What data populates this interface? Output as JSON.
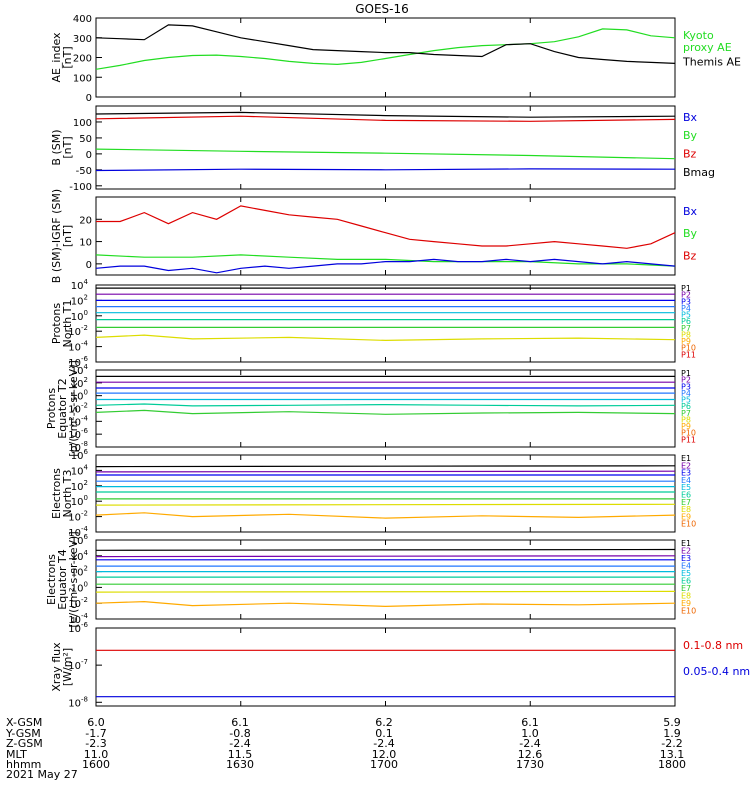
{
  "figure": {
    "title": "GOES-16",
    "date": "2021 May 27"
  },
  "colors": {
    "black": "#000000",
    "green": "#22dd22",
    "blue": "#0000dd",
    "red": "#dd0000",
    "P": [
      "#000000",
      "#7700aa",
      "#0000ee",
      "#2277ff",
      "#00bbdd",
      "#00cc99",
      "#33cc33",
      "#dddd00",
      "#ffaa00",
      "#ee6600",
      "#dd0000"
    ],
    "E": [
      "#000000",
      "#7700aa",
      "#0000ee",
      "#2277ff",
      "#00bbdd",
      "#00cc99",
      "#33cc33",
      "#dddd00",
      "#ffaa00",
      "#ee6600",
      "#dd0000"
    ]
  },
  "ephemeris": {
    "rows": [
      {
        "label": "X-GSM",
        "values": [
          "6.0",
          "6.1",
          "6.2",
          "6.1",
          "5.9"
        ]
      },
      {
        "label": "Y-GSM",
        "values": [
          "-1.7",
          "-0.8",
          "0.1",
          "1.0",
          "1.9"
        ]
      },
      {
        "label": "Z-GSM",
        "values": [
          "-2.3",
          "-2.4",
          "-2.4",
          "-2.4",
          "-2.2"
        ]
      },
      {
        "label": "MLT",
        "values": [
          "11.0",
          "11.5",
          "12.0",
          "12.6",
          "13.1"
        ]
      },
      {
        "label": "hhmm",
        "values": [
          "1600",
          "1630",
          "1700",
          "1730",
          "1800"
        ]
      }
    ]
  },
  "chart_data": [
    {
      "type": "line",
      "ylabel": [
        "AE_index",
        "[nT]"
      ],
      "ylim": [
        0,
        400
      ],
      "yscale": "linear",
      "yticks": [
        0,
        100,
        200,
        300,
        400
      ],
      "xlim": [
        0,
        120
      ],
      "legend": [
        {
          "text": [
            "Kyoto",
            "proxy AE"
          ],
          "color": "#22dd22"
        },
        {
          "text": [
            "Themis AE"
          ],
          "color": "#000000"
        }
      ],
      "series": [
        {
          "name": "Kyoto proxy AE",
          "color": "#22dd22",
          "x": [
            0,
            5,
            10,
            15,
            20,
            25,
            30,
            35,
            40,
            45,
            50,
            55,
            60,
            65,
            70,
            75,
            80,
            85,
            90,
            95,
            100,
            105,
            110,
            115,
            120
          ],
          "y": [
            140,
            160,
            185,
            200,
            210,
            212,
            205,
            195,
            180,
            170,
            165,
            175,
            195,
            215,
            235,
            250,
            260,
            265,
            270,
            280,
            305,
            345,
            340,
            310,
            300
          ]
        },
        {
          "name": "Themis AE",
          "color": "#000000",
          "x": [
            0,
            5,
            10,
            15,
            20,
            25,
            30,
            35,
            40,
            45,
            50,
            55,
            60,
            65,
            70,
            75,
            80,
            85,
            90,
            95,
            100,
            105,
            110,
            115,
            120
          ],
          "y": [
            300,
            295,
            290,
            365,
            360,
            330,
            300,
            280,
            260,
            240,
            235,
            230,
            225,
            225,
            215,
            210,
            205,
            265,
            270,
            230,
            200,
            190,
            180,
            175,
            170
          ]
        }
      ]
    },
    {
      "type": "line",
      "ylabel": [
        "B (SM)",
        "[nT]"
      ],
      "ylim": [
        -110,
        150
      ],
      "yscale": "linear",
      "yticks": [
        -100,
        -50,
        0,
        50,
        100
      ],
      "xlim": [
        0,
        120
      ],
      "legend": [
        {
          "text": [
            "Bx"
          ],
          "color": "#0000dd"
        },
        {
          "text": [
            "By"
          ],
          "color": "#22dd22"
        },
        {
          "text": [
            "Bz"
          ],
          "color": "#dd0000"
        },
        {
          "text": [
            "Bmag"
          ],
          "color": "#000000"
        }
      ],
      "series": [
        {
          "name": "Bmag",
          "color": "#000000",
          "x": [
            0,
            30,
            60,
            90,
            120
          ],
          "y": [
            125,
            130,
            120,
            115,
            118
          ]
        },
        {
          "name": "Bz",
          "color": "#dd0000",
          "x": [
            0,
            30,
            60,
            90,
            120
          ],
          "y": [
            110,
            118,
            105,
            102,
            108
          ]
        },
        {
          "name": "By",
          "color": "#22dd22",
          "x": [
            0,
            30,
            60,
            90,
            120
          ],
          "y": [
            15,
            8,
            2,
            -5,
            -15
          ]
        },
        {
          "name": "Bx",
          "color": "#0000dd",
          "x": [
            0,
            30,
            60,
            90,
            120
          ],
          "y": [
            -52,
            -48,
            -50,
            -47,
            -48
          ]
        }
      ]
    },
    {
      "type": "line",
      "ylabel": [
        "B (SM)-IGRF (SM)",
        "[nT]"
      ],
      "ylim": [
        -5,
        30
      ],
      "yscale": "linear",
      "yticks": [
        0,
        10,
        20
      ],
      "xlim": [
        0,
        120
      ],
      "legend": [
        {
          "text": [
            "Bx"
          ],
          "color": "#0000dd"
        },
        {
          "text": [
            "By"
          ],
          "color": "#22dd22"
        },
        {
          "text": [
            "Bz"
          ],
          "color": "#dd0000"
        }
      ],
      "series": [
        {
          "name": "Bz",
          "color": "#dd0000",
          "x": [
            0,
            5,
            10,
            15,
            20,
            25,
            30,
            35,
            40,
            45,
            50,
            55,
            60,
            65,
            70,
            75,
            80,
            85,
            90,
            95,
            100,
            105,
            110,
            115,
            120
          ],
          "y": [
            19,
            19,
            23,
            18,
            23,
            20,
            26,
            24,
            22,
            21,
            20,
            17,
            14,
            11,
            10,
            9,
            8,
            8,
            9,
            10,
            9,
            8,
            7,
            9,
            14
          ]
        },
        {
          "name": "By",
          "color": "#22dd22",
          "x": [
            0,
            10,
            20,
            30,
            40,
            50,
            60,
            70,
            80,
            90,
            100,
            110,
            120
          ],
          "y": [
            4,
            3,
            3,
            4,
            3,
            2,
            2,
            1,
            1,
            1,
            0,
            0,
            -1
          ]
        },
        {
          "name": "Bx",
          "color": "#0000dd",
          "x": [
            0,
            5,
            10,
            15,
            20,
            25,
            30,
            35,
            40,
            45,
            50,
            55,
            60,
            65,
            70,
            75,
            80,
            85,
            90,
            95,
            100,
            105,
            110,
            115,
            120
          ],
          "y": [
            -2,
            -1,
            -1,
            -3,
            -2,
            -4,
            -2,
            -1,
            -2,
            -1,
            0,
            0,
            1,
            1,
            2,
            1,
            1,
            2,
            1,
            2,
            1,
            0,
            1,
            0,
            -1
          ]
        }
      ]
    },
    {
      "type": "line",
      "ylabel": [
        "Protons",
        "North T1"
      ],
      "yscale": "log",
      "ylim": [
        -6,
        4
      ],
      "ytick_exps": [
        -6,
        -4,
        -2,
        0,
        2,
        4
      ],
      "xlim": [
        0,
        120
      ],
      "legend_names": [
        "P1",
        "P2",
        "P3",
        "P4",
        "P5",
        "P6",
        "P7",
        "P8",
        "P9",
        "P10",
        "P11"
      ],
      "series": [
        {
          "name": "P1",
          "x": [
            0,
            120
          ],
          "y": [
            3.6,
            3.6
          ]
        },
        {
          "name": "P2",
          "x": [
            0,
            120
          ],
          "y": [
            2.8,
            2.8
          ]
        },
        {
          "name": "P3",
          "x": [
            0,
            120
          ],
          "y": [
            2.0,
            2.0
          ]
        },
        {
          "name": "P4",
          "x": [
            0,
            120
          ],
          "y": [
            1.2,
            1.2
          ]
        },
        {
          "name": "P5",
          "x": [
            0,
            120
          ],
          "y": [
            0.4,
            0.4
          ]
        },
        {
          "name": "P6",
          "x": [
            0,
            120
          ],
          "y": [
            -0.5,
            -0.5
          ]
        },
        {
          "name": "P7",
          "x": [
            0,
            120
          ],
          "y": [
            -1.5,
            -1.5
          ]
        },
        {
          "name": "P8",
          "x": [
            0,
            10,
            20,
            40,
            60,
            80,
            100,
            120
          ],
          "y": [
            -2.8,
            -2.5,
            -3.0,
            -2.8,
            -3.2,
            -3.0,
            -2.9,
            -3.1
          ]
        }
      ]
    },
    {
      "type": "line",
      "ylabel": [
        "Protons",
        "Equator T2",
        "[p/(cm²-s-sr-keV)]"
      ],
      "yscale": "log",
      "ylim": [
        -8,
        4
      ],
      "ytick_exps": [
        -8,
        -6,
        -4,
        -2,
        0,
        2,
        4
      ],
      "xlim": [
        0,
        120
      ],
      "legend_names": [
        "P1",
        "P2",
        "P3",
        "P4",
        "P5",
        "P6",
        "P7",
        "P8",
        "P9",
        "P10",
        "P11"
      ],
      "series": [
        {
          "name": "P1",
          "x": [
            0,
            120
          ],
          "y": [
            3.0,
            3.0
          ]
        },
        {
          "name": "P2",
          "x": [
            0,
            120
          ],
          "y": [
            2.1,
            2.1
          ]
        },
        {
          "name": "P3",
          "x": [
            0,
            120
          ],
          "y": [
            1.2,
            1.2
          ]
        },
        {
          "name": "P4",
          "x": [
            0,
            120
          ],
          "y": [
            0.4,
            0.4
          ]
        },
        {
          "name": "P5",
          "x": [
            0,
            120
          ],
          "y": [
            -0.6,
            -0.6
          ]
        },
        {
          "name": "P6",
          "x": [
            0,
            10,
            20,
            40,
            60,
            80,
            100,
            120
          ],
          "y": [
            -1.5,
            -1.3,
            -1.6,
            -1.5,
            -1.4,
            -1.5,
            -1.6,
            -1.5
          ]
        },
        {
          "name": "P7",
          "x": [
            0,
            10,
            20,
            40,
            60,
            80,
            100,
            120
          ],
          "y": [
            -2.6,
            -2.3,
            -2.8,
            -2.5,
            -2.9,
            -2.7,
            -2.6,
            -2.8
          ]
        }
      ]
    },
    {
      "type": "line",
      "ylabel": [
        "Electrons",
        "North T3"
      ],
      "yscale": "log",
      "ylim": [
        -4,
        6
      ],
      "ytick_exps": [
        -4,
        -2,
        0,
        2,
        4,
        6
      ],
      "xlim": [
        0,
        120
      ],
      "legend_names": [
        "E1",
        "E2",
        "E3",
        "E4",
        "E5",
        "E6",
        "E7",
        "E8",
        "E9",
        "E10"
      ],
      "series": [
        {
          "name": "E1",
          "x": [
            0,
            120
          ],
          "y": [
            4.5,
            4.6
          ]
        },
        {
          "name": "E2",
          "x": [
            0,
            120
          ],
          "y": [
            3.8,
            3.9
          ]
        },
        {
          "name": "E3",
          "x": [
            0,
            120
          ],
          "y": [
            3.4,
            3.4
          ]
        },
        {
          "name": "E4",
          "x": [
            0,
            120
          ],
          "y": [
            2.6,
            2.6
          ]
        },
        {
          "name": "E5",
          "x": [
            0,
            120
          ],
          "y": [
            1.9,
            1.9
          ]
        },
        {
          "name": "E6",
          "x": [
            0,
            120
          ],
          "y": [
            1.2,
            1.2
          ]
        },
        {
          "name": "E7",
          "x": [
            0,
            120
          ],
          "y": [
            0.3,
            0.3
          ]
        },
        {
          "name": "E8",
          "x": [
            0,
            120
          ],
          "y": [
            -0.5,
            -0.4
          ]
        },
        {
          "name": "E9",
          "x": [
            0,
            10,
            20,
            40,
            60,
            80,
            100,
            120
          ],
          "y": [
            -1.8,
            -1.5,
            -2.0,
            -1.7,
            -2.2,
            -1.9,
            -2.1,
            -1.8
          ]
        }
      ]
    },
    {
      "type": "line",
      "ylabel": [
        "Electrons",
        "Equator T4",
        "[e/(cm²-s-sr-keV)]"
      ],
      "yscale": "log",
      "ylim": [
        -4,
        6
      ],
      "ytick_exps": [
        -4,
        -2,
        0,
        2,
        4,
        6
      ],
      "xlim": [
        0,
        120
      ],
      "legend_names": [
        "E1",
        "E2",
        "E3",
        "E4",
        "E5",
        "E6",
        "E7",
        "E8",
        "E9",
        "E10"
      ],
      "series": [
        {
          "name": "E1",
          "x": [
            0,
            120
          ],
          "y": [
            4.7,
            4.8
          ]
        },
        {
          "name": "E2",
          "x": [
            0,
            120
          ],
          "y": [
            3.9,
            4.0
          ]
        },
        {
          "name": "E3",
          "x": [
            0,
            120
          ],
          "y": [
            3.5,
            3.5
          ]
        },
        {
          "name": "E4",
          "x": [
            0,
            120
          ],
          "y": [
            2.7,
            2.7
          ]
        },
        {
          "name": "E5",
          "x": [
            0,
            120
          ],
          "y": [
            2.0,
            2.0
          ]
        },
        {
          "name": "E6",
          "x": [
            0,
            120
          ],
          "y": [
            1.3,
            1.3
          ]
        },
        {
          "name": "E7",
          "x": [
            0,
            120
          ],
          "y": [
            0.4,
            0.4
          ]
        },
        {
          "name": "E8",
          "x": [
            0,
            120
          ],
          "y": [
            -0.6,
            -0.5
          ]
        },
        {
          "name": "E9",
          "x": [
            0,
            10,
            20,
            40,
            60,
            80,
            100,
            120
          ],
          "y": [
            -2.0,
            -1.8,
            -2.3,
            -2.0,
            -2.4,
            -2.1,
            -2.2,
            -2.0
          ]
        }
      ]
    },
    {
      "type": "line",
      "ylabel": [
        "Xray flux",
        "[W/m²]"
      ],
      "yscale": "log",
      "ylim": [
        -8.1,
        -6
      ],
      "ytick_exps": [
        -8,
        -7,
        -6
      ],
      "xlim": [
        0,
        120
      ],
      "legend": [
        {
          "text": [
            "0.1-0.8 nm"
          ],
          "color": "#dd0000"
        },
        {
          "text": [
            "0.05-0.4 nm"
          ],
          "color": "#0000dd"
        }
      ],
      "series": [
        {
          "name": "0.1-0.8 nm",
          "color": "#dd0000",
          "x": [
            0,
            120
          ],
          "y": [
            -6.6,
            -6.6
          ]
        },
        {
          "name": "0.05-0.4 nm",
          "color": "#0000dd",
          "x": [
            0,
            120
          ],
          "y": [
            -7.85,
            -7.85
          ]
        }
      ]
    }
  ]
}
